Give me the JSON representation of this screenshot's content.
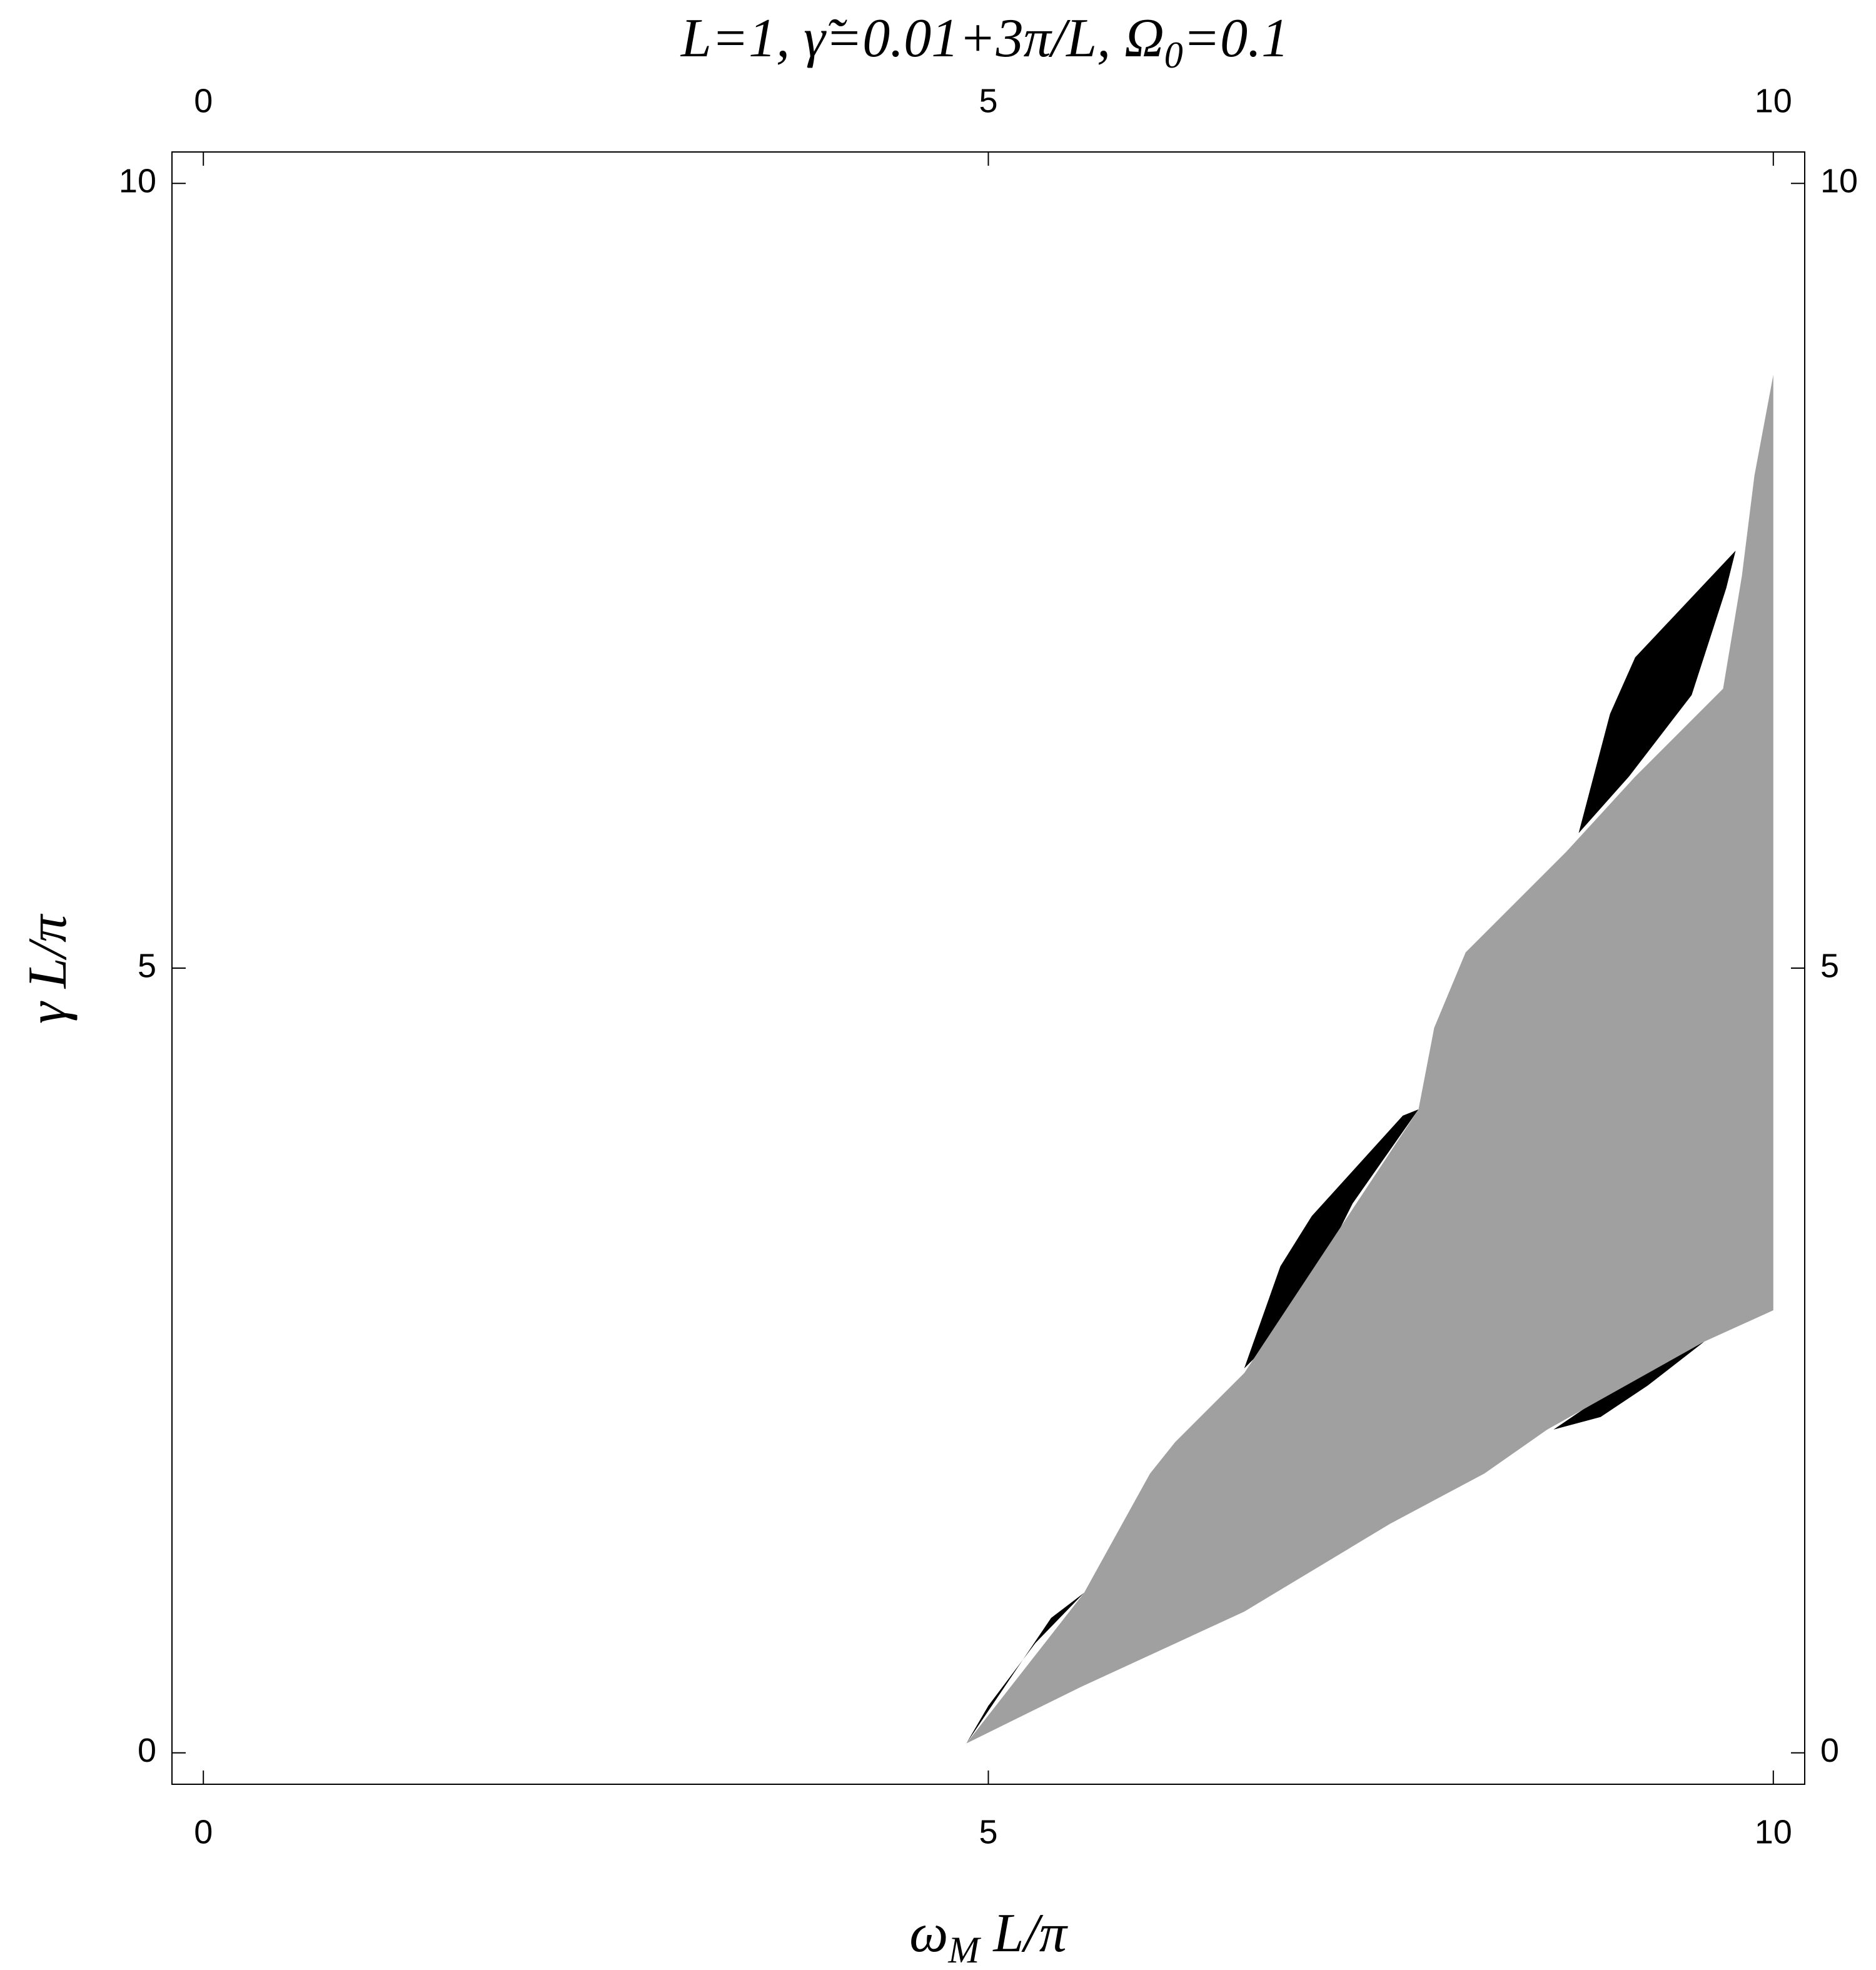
{
  "chart_data": {
    "type": "region",
    "title": [
      "L=1, γ̃=0.01+3π/L, Ω",
      "0",
      "=0.1"
    ],
    "xlabel": [
      "ω",
      "M",
      " L/π"
    ],
    "ylabel": "γ L/π",
    "xlim": [
      -0.2,
      10.2
    ],
    "ylim": [
      -0.2,
      10.2
    ],
    "xticks": [
      0,
      5,
      10
    ],
    "yticks": [
      0,
      5,
      10
    ],
    "regions": [
      {
        "color": "#000000",
        "x": [
          4.86,
          5.13,
          5.4,
          5.61,
          5.3,
          5.0
        ],
        "y": [
          0.06,
          0.46,
          0.86,
          1.02,
          0.7,
          0.3
        ]
      },
      {
        "color": "#000000",
        "x": [
          6.63,
          6.86,
          7.06,
          7.64,
          7.74,
          7.32,
          6.96
        ],
        "y": [
          2.45,
          3.1,
          3.42,
          4.06,
          4.1,
          3.5,
          2.78
        ]
      },
      {
        "color": "#000000",
        "x": [
          8.76,
          8.96,
          9.12,
          9.76,
          9.7,
          9.48,
          9.08
        ],
        "y": [
          5.86,
          6.62,
          6.98,
          7.66,
          7.42,
          6.74,
          6.22
        ]
      },
      {
        "color": "#000000",
        "x": [
          8.6,
          9.1,
          9.56,
          9.2,
          8.9
        ],
        "y": [
          2.06,
          2.4,
          2.62,
          2.34,
          2.14
        ]
      },
      {
        "color": "#000000",
        "x": [
          6.6,
          7.06,
          7.56,
          7.1
        ],
        "y": [
          0.9,
          1.24,
          1.46,
          1.28
        ]
      },
      {
        "color": "#a0a0a0",
        "x": [
          4.86,
          5.61,
          6.03,
          6.19,
          6.63,
          7.74,
          7.84,
          8.04,
          8.68,
          9.12,
          9.68,
          9.8,
          9.88,
          10.0,
          10.0,
          9.56,
          8.56,
          8.16,
          7.56,
          6.63,
          5.59
        ],
        "y": [
          0.06,
          1.02,
          1.78,
          1.98,
          2.42,
          4.1,
          4.62,
          5.1,
          5.74,
          6.22,
          6.78,
          7.5,
          8.14,
          8.78,
          2.82,
          2.62,
          2.06,
          1.78,
          1.46,
          0.9,
          0.42
        ]
      }
    ]
  }
}
